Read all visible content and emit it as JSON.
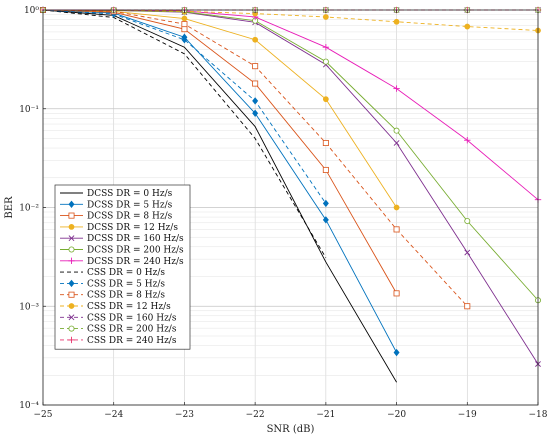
{
  "chart_data": {
    "type": "line",
    "xlabel": "SNR (dB)",
    "ylabel": "BER",
    "xlim": [
      -25,
      -18
    ],
    "ylim_log10": [
      -4,
      0
    ],
    "yscale": "log",
    "grid": true,
    "legend_position": "lower-left",
    "x_ticks": [
      "−25",
      "−24",
      "−23",
      "−22",
      "−21",
      "−20",
      "−19",
      "−18"
    ],
    "y_ticks": [
      "10⁻⁴",
      "10⁻³",
      "10⁻²",
      "10⁻¹",
      "10⁰"
    ],
    "series": [
      {
        "name": "DCSS DR = 0 Hz/s",
        "family": "DCSS",
        "dr": "0",
        "color": "#000000",
        "dash": false,
        "marker": "none",
        "x": [
          -25,
          -24,
          -23,
          -22,
          -21,
          -20
        ],
        "y": [
          1.0,
          0.88,
          0.42,
          0.066,
          0.0028,
          0.00017
        ]
      },
      {
        "name": "DCSS DR = 5 Hz/s",
        "family": "DCSS",
        "dr": "5",
        "color": "#0072BD",
        "dash": false,
        "marker": "diamond",
        "x": [
          -25,
          -24,
          -23,
          -22,
          -21,
          -20
        ],
        "y": [
          1.0,
          0.93,
          0.53,
          0.09,
          0.0075,
          0.00034
        ]
      },
      {
        "name": "DCSS DR = 8 Hz/s",
        "family": "DCSS",
        "dr": "8",
        "color": "#D95319",
        "dash": false,
        "marker": "square",
        "x": [
          -25,
          -24,
          -23,
          -22,
          -21,
          -20
        ],
        "y": [
          1.0,
          0.95,
          0.64,
          0.18,
          0.024,
          0.00135
        ]
      },
      {
        "name": "DCSS DR = 12 Hz/s",
        "family": "DCSS",
        "dr": "12",
        "color": "#EDB120",
        "dash": false,
        "marker": "circle-filled",
        "x": [
          -25,
          -24,
          -23,
          -22,
          -21,
          -20
        ],
        "y": [
          1.0,
          0.97,
          0.82,
          0.5,
          0.125,
          0.01
        ]
      },
      {
        "name": "DCSS DR = 160 Hz/s",
        "family": "DCSS",
        "dr": "160",
        "color": "#7E2F8E",
        "dash": false,
        "marker": "x",
        "x": [
          -25,
          -24,
          -23,
          -22,
          -21,
          -20,
          -19,
          -18
        ],
        "y": [
          1.0,
          0.99,
          0.95,
          0.75,
          0.28,
          0.045,
          0.0035,
          0.00026
        ]
      },
      {
        "name": "DCSS DR = 200 Hz/s",
        "family": "DCSS",
        "dr": "200",
        "color": "#77AC30",
        "dash": false,
        "marker": "circle-open",
        "x": [
          -25,
          -24,
          -23,
          -22,
          -21,
          -20,
          -19,
          -18
        ],
        "y": [
          1.0,
          0.99,
          0.96,
          0.78,
          0.3,
          0.06,
          0.0073,
          0.00115
        ]
      },
      {
        "name": "DCSS DR = 240 Hz/s",
        "family": "DCSS",
        "dr": "240",
        "color": "#E81DB8",
        "dash": false,
        "marker": "plus",
        "x": [
          -25,
          -24,
          -23,
          -22,
          -21,
          -20,
          -19,
          -18
        ],
        "y": [
          1.0,
          1.0,
          0.98,
          0.85,
          0.42,
          0.16,
          0.048,
          0.012
        ]
      },
      {
        "name": "CSS DR = 0 Hz/s",
        "family": "CSS",
        "dr": "0",
        "color": "#000000",
        "dash": true,
        "marker": "none",
        "x": [
          -25,
          -24,
          -23,
          -22,
          -21
        ],
        "y": [
          1.0,
          0.84,
          0.36,
          0.05,
          0.0031
        ]
      },
      {
        "name": "CSS DR = 5 Hz/s",
        "family": "CSS",
        "dr": "5",
        "color": "#0072BD",
        "dash": true,
        "marker": "diamond",
        "x": [
          -25,
          -24,
          -23,
          -22,
          -21
        ],
        "y": [
          1.0,
          0.91,
          0.5,
          0.12,
          0.011
        ]
      },
      {
        "name": "CSS DR = 8 Hz/s",
        "family": "CSS",
        "dr": "8",
        "color": "#D95319",
        "dash": true,
        "marker": "square",
        "x": [
          -25,
          -24,
          -23,
          -22,
          -21,
          -20,
          -19
        ],
        "y": [
          1.0,
          0.97,
          0.72,
          0.27,
          0.045,
          0.006,
          0.001
        ]
      },
      {
        "name": "CSS DR = 12 Hz/s",
        "family": "CSS",
        "dr": "12",
        "color": "#EDB120",
        "dash": true,
        "marker": "circle-filled",
        "x": [
          -25,
          -24,
          -23,
          -22,
          -21,
          -20,
          -19,
          -18
        ],
        "y": [
          1.0,
          1.0,
          0.97,
          0.92,
          0.85,
          0.76,
          0.68,
          0.62
        ]
      },
      {
        "name": "CSS DR = 160 Hz/s",
        "family": "CSS",
        "dr": "160",
        "color": "#7E2F8E",
        "dash": true,
        "marker": "x",
        "x": [
          -25,
          -24,
          -23,
          -22,
          -21,
          -20,
          -19,
          -18
        ],
        "y": [
          1.0,
          1.0,
          1.0,
          1.0,
          1.0,
          1.0,
          1.0,
          1.0
        ]
      },
      {
        "name": "CSS DR = 200 Hz/s",
        "family": "CSS",
        "dr": "200",
        "color": "#77AC30",
        "dash": true,
        "marker": "circle-open",
        "x": [
          -25,
          -24,
          -23,
          -22,
          -21,
          -20,
          -19,
          -18
        ],
        "y": [
          1.0,
          1.0,
          1.0,
          1.0,
          1.0,
          1.0,
          1.0,
          1.0
        ]
      },
      {
        "name": "CSS DR = 240 Hz/s",
        "family": "CSS",
        "dr": "240",
        "color": "#E8336C",
        "dash": true,
        "marker": "plus",
        "x": [
          -25,
          -24,
          -23,
          -22,
          -21,
          -20,
          -19,
          -18
        ],
        "y": [
          1.0,
          1.0,
          1.0,
          1.0,
          1.0,
          1.0,
          1.0,
          1.0
        ]
      }
    ]
  }
}
